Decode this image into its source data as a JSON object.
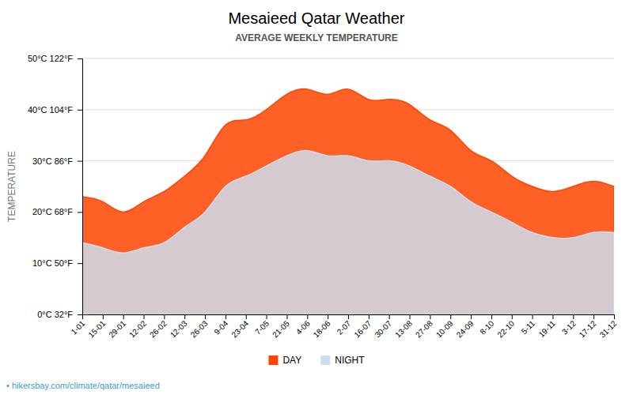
{
  "chart_data": {
    "type": "area",
    "title": "Mesaieed Qatar Weather",
    "subtitle": "AVERAGE WEEKLY TEMPERATURE",
    "y_label": "TEMPERATURE",
    "annotations": [
      "• hikersbay.com/climate/qatar/mesaieed"
    ],
    "categories": [
      "1-01",
      "15-01",
      "29-01",
      "12-02",
      "26-02",
      "12-03",
      "26-03",
      "9-04",
      "23-04",
      "7-05",
      "21-05",
      "4-06",
      "18-06",
      "2-07",
      "16-07",
      "30-07",
      "13-08",
      "27-08",
      "10-09",
      "24-09",
      "8-10",
      "22-10",
      "5-11",
      "19-11",
      "3-12",
      "17-12",
      "31-12"
    ],
    "series": [
      {
        "name": "DAY",
        "color": "#ff4400",
        "values": [
          23,
          22,
          20,
          22,
          24,
          27,
          31,
          37,
          38,
          40,
          43,
          44,
          43,
          44,
          42,
          42,
          41,
          38,
          36,
          32,
          30,
          27,
          25,
          24,
          25,
          26,
          25
        ]
      },
      {
        "name": "NIGHT",
        "color": "#ccddee",
        "values": [
          14,
          13,
          12,
          13,
          14,
          17,
          20,
          25,
          27,
          29,
          31,
          32,
          31,
          31,
          30,
          30,
          29,
          27,
          25,
          22,
          20,
          18,
          16,
          15,
          15,
          16,
          16
        ]
      }
    ],
    "ylim": [
      0,
      50
    ],
    "yticks": [
      {
        "value": 0,
        "label": "0°C 32°F"
      },
      {
        "value": 10,
        "label": "10°C 50°F"
      },
      {
        "value": 20,
        "label": "20°C 68°F"
      },
      {
        "value": 30,
        "label": "30°C 86°F"
      },
      {
        "value": 40,
        "label": "40°C 104°F"
      },
      {
        "value": 50,
        "label": "50°C 122°F"
      }
    ],
    "grid": true,
    "legend": "bottom"
  }
}
